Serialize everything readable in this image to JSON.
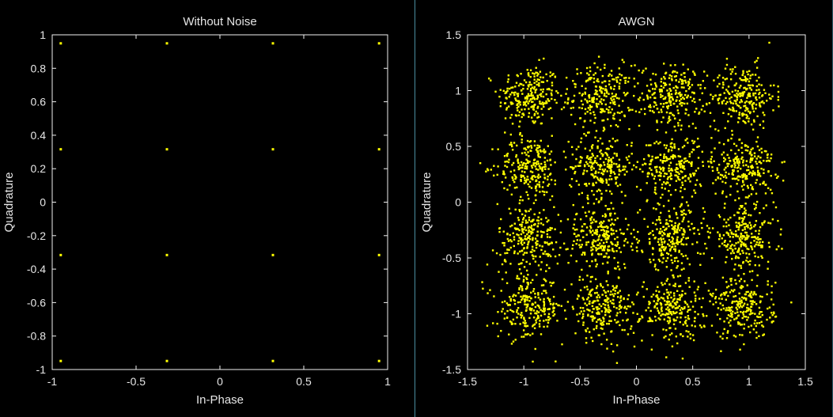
{
  "chart_data": [
    {
      "type": "scatter",
      "title": "Without Noise",
      "xlabel": "In-Phase",
      "ylabel": "Quadrature",
      "xlim": [
        -1,
        1
      ],
      "ylim": [
        -1,
        1
      ],
      "xticks": [
        -1,
        -0.5,
        0,
        0.5,
        1
      ],
      "xtick_labels": [
        "-1",
        "-0.5",
        "0",
        "0.5",
        "1"
      ],
      "yticks": [
        1,
        0.8,
        0.6,
        0.4,
        0.2,
        0,
        -0.2,
        -0.4,
        -0.6,
        -0.8,
        -1
      ],
      "ytick_labels": [
        "1",
        "0.8",
        "0.6",
        "0.4",
        "0.2",
        "0",
        "-0.2",
        "-0.4",
        "-0.6",
        "-0.8",
        "-1"
      ],
      "grid": false,
      "marker_color": "#ffff00",
      "points": [
        [
          -0.949,
          0.949
        ],
        [
          -0.316,
          0.949
        ],
        [
          0.316,
          0.949
        ],
        [
          0.949,
          0.949
        ],
        [
          -0.949,
          0.316
        ],
        [
          -0.316,
          0.316
        ],
        [
          0.316,
          0.316
        ],
        [
          0.949,
          0.316
        ],
        [
          -0.949,
          -0.316
        ],
        [
          -0.316,
          -0.316
        ],
        [
          0.316,
          -0.316
        ],
        [
          0.949,
          -0.316
        ],
        [
          -0.949,
          -0.949
        ],
        [
          -0.316,
          -0.949
        ],
        [
          0.316,
          -0.949
        ],
        [
          0.949,
          -0.949
        ]
      ]
    },
    {
      "type": "scatter",
      "title": "AWGN",
      "xlabel": "In-Phase",
      "ylabel": "Quadrature",
      "xlim": [
        -1.5,
        1.5
      ],
      "ylim": [
        -1.5,
        1.5
      ],
      "xticks": [
        -1.5,
        -1,
        -0.5,
        0,
        0.5,
        1,
        1.5
      ],
      "xtick_labels": [
        "-1.5",
        "-1",
        "-0.5",
        "0",
        "0.5",
        "1",
        "1.5"
      ],
      "yticks": [
        1.5,
        1,
        0.5,
        0,
        -0.5,
        -1,
        -1.5
      ],
      "ytick_labels": [
        "1.5",
        "1",
        "0.5",
        "0",
        "-0.5",
        "-1",
        "-1.5"
      ],
      "grid": false,
      "marker_color": "#ffff00",
      "cluster_centers": [
        [
          -0.949,
          0.949
        ],
        [
          -0.316,
          0.949
        ],
        [
          0.316,
          0.949
        ],
        [
          0.949,
          0.949
        ],
        [
          -0.949,
          0.316
        ],
        [
          -0.316,
          0.316
        ],
        [
          0.316,
          0.316
        ],
        [
          0.949,
          0.316
        ],
        [
          -0.949,
          -0.316
        ],
        [
          -0.316,
          -0.316
        ],
        [
          0.316,
          -0.316
        ],
        [
          0.949,
          -0.316
        ],
        [
          -0.949,
          -0.949
        ],
        [
          -0.316,
          -0.949
        ],
        [
          0.316,
          -0.949
        ],
        [
          0.949,
          -0.949
        ]
      ],
      "points_per_cluster": 240,
      "noise_std": 0.14
    }
  ]
}
